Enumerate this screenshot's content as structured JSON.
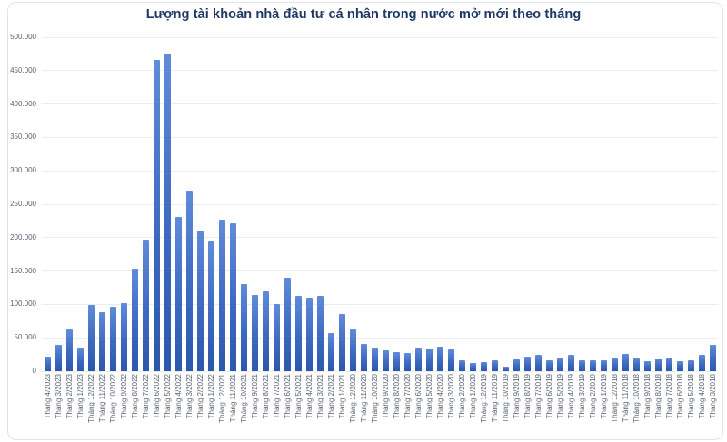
{
  "title": "Lượng tài khoản nhà đầu tư cá nhân trong nước mở mới theo tháng",
  "colors": {
    "title": "#1f3864",
    "bar_top": "#5f8bda",
    "bar_bottom": "#2c58ab",
    "gridline": "#e9ecf3",
    "axis_label": "#5a6272",
    "card_border": "#dfe3ec"
  },
  "chart_data": {
    "type": "bar",
    "title": "Lượng tài khoản nhà đầu tư cá nhân trong nước mở mới theo tháng",
    "xlabel": "",
    "ylabel": "",
    "ylim": [
      0,
      500000
    ],
    "ytick_step": 50000,
    "ytick_labels": [
      "0",
      "50.000",
      "100.000",
      "150.000",
      "200.000",
      "250.000",
      "300.000",
      "350.000",
      "400.000",
      "450.000",
      "500.000"
    ],
    "grid": true,
    "legend": false,
    "categories": [
      "Tháng 4/2023",
      "Tháng 3/2023",
      "Tháng 2/2023",
      "Tháng 1/2023",
      "Tháng 12/2022",
      "Tháng 11/2022",
      "Tháng 10/2022",
      "Tháng 9/2022",
      "Tháng 8/2022",
      "Tháng 7/2022",
      "Tháng 6/2022",
      "Tháng 5/2022",
      "Tháng 4/2022",
      "Tháng 3/2022",
      "Tháng 2/2022",
      "Tháng 1/2022",
      "Tháng 12/2021",
      "Tháng 11/2021",
      "Tháng 10/2021",
      "Tháng 9/2021",
      "Tháng 8/2021",
      "Tháng 7/2021",
      "Tháng 6/2021",
      "Tháng 5/2021",
      "Tháng 4/2021",
      "Tháng 3/2021",
      "Tháng 2/2021",
      "Tháng 1/2021",
      "Tháng 12/2020",
      "Tháng 11/2020",
      "Tháng 10/2020",
      "Tháng 9/2020",
      "Tháng 8/2020",
      "Tháng 7/2020",
      "Tháng 6/2020",
      "Tháng 5/2020",
      "Tháng 4/2020",
      "Tháng 3/2020",
      "Tháng 2/2020",
      "Tháng 1/2020",
      "Tháng 12/2019",
      "Tháng 11/2019",
      "Tháng 10/2019",
      "Tháng 9/2019",
      "Tháng 8/2019",
      "Tháng 7/2019",
      "Tháng 6/2019",
      "Tháng 5/2019",
      "Tháng 4/2019",
      "Tháng 3/2019",
      "Tháng 2/2019",
      "Tháng 1/2019",
      "Tháng 12/2018",
      "Tháng 11/2018",
      "Tháng 10/2018",
      "Tháng 9/2018",
      "Tháng 8/2018",
      "Tháng 7/2018",
      "Tháng 6/2018",
      "Tháng 5/2018",
      "Tháng 4/2018",
      "Tháng 3/2018"
    ],
    "values": [
      22000,
      39000,
      63000,
      36000,
      99000,
      88000,
      96000,
      102000,
      153000,
      197000,
      466000,
      476000,
      231000,
      270000,
      210000,
      194000,
      227000,
      221000,
      130000,
      114000,
      120000,
      101000,
      140000,
      113000,
      110000,
      113000,
      57000,
      86000,
      63000,
      41000,
      36000,
      31000,
      28000,
      27000,
      35000,
      34000,
      37000,
      32000,
      16000,
      12000,
      14000,
      17000,
      7000,
      18000,
      22000,
      24000,
      17000,
      20000,
      24000,
      17000,
      16000,
      17000,
      21000,
      26000,
      21000,
      15000,
      19000,
      20000,
      15000,
      16000,
      24000,
      39000
    ]
  }
}
